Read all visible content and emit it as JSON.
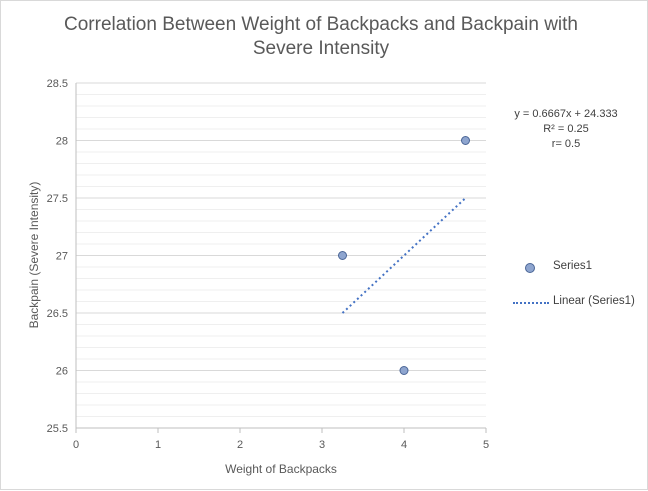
{
  "chart_data": {
    "type": "scatter",
    "title": "Correlation Between Weight of Backpacks and Backpain with Severe Intensity",
    "xlabel": "Weight of Backpacks",
    "ylabel": "Backpain (Severe Intensity)",
    "xlim": [
      0,
      5
    ],
    "ylim": [
      25.5,
      28.5
    ],
    "x_ticks": [
      0,
      1,
      2,
      3,
      4,
      5
    ],
    "y_ticks": [
      25.5,
      26,
      26.5,
      27,
      27.5,
      28,
      28.5
    ],
    "grid": true,
    "legend_position": "right",
    "series": [
      {
        "name": "Series1",
        "color": "#8ea5cf",
        "points": [
          {
            "x": 3.25,
            "y": 27
          },
          {
            "x": 4,
            "y": 26
          },
          {
            "x": 4.75,
            "y": 28
          }
        ]
      }
    ],
    "trendline": {
      "name": "Linear (Series1)",
      "color": "#4472c4",
      "slope": 0.6667,
      "intercept": 24.333,
      "x_range": [
        3.25,
        4.75
      ]
    },
    "annotations": [
      "y = 0.6667x + 24.333",
      "R² = 0.25",
      "r= 0.5"
    ]
  }
}
